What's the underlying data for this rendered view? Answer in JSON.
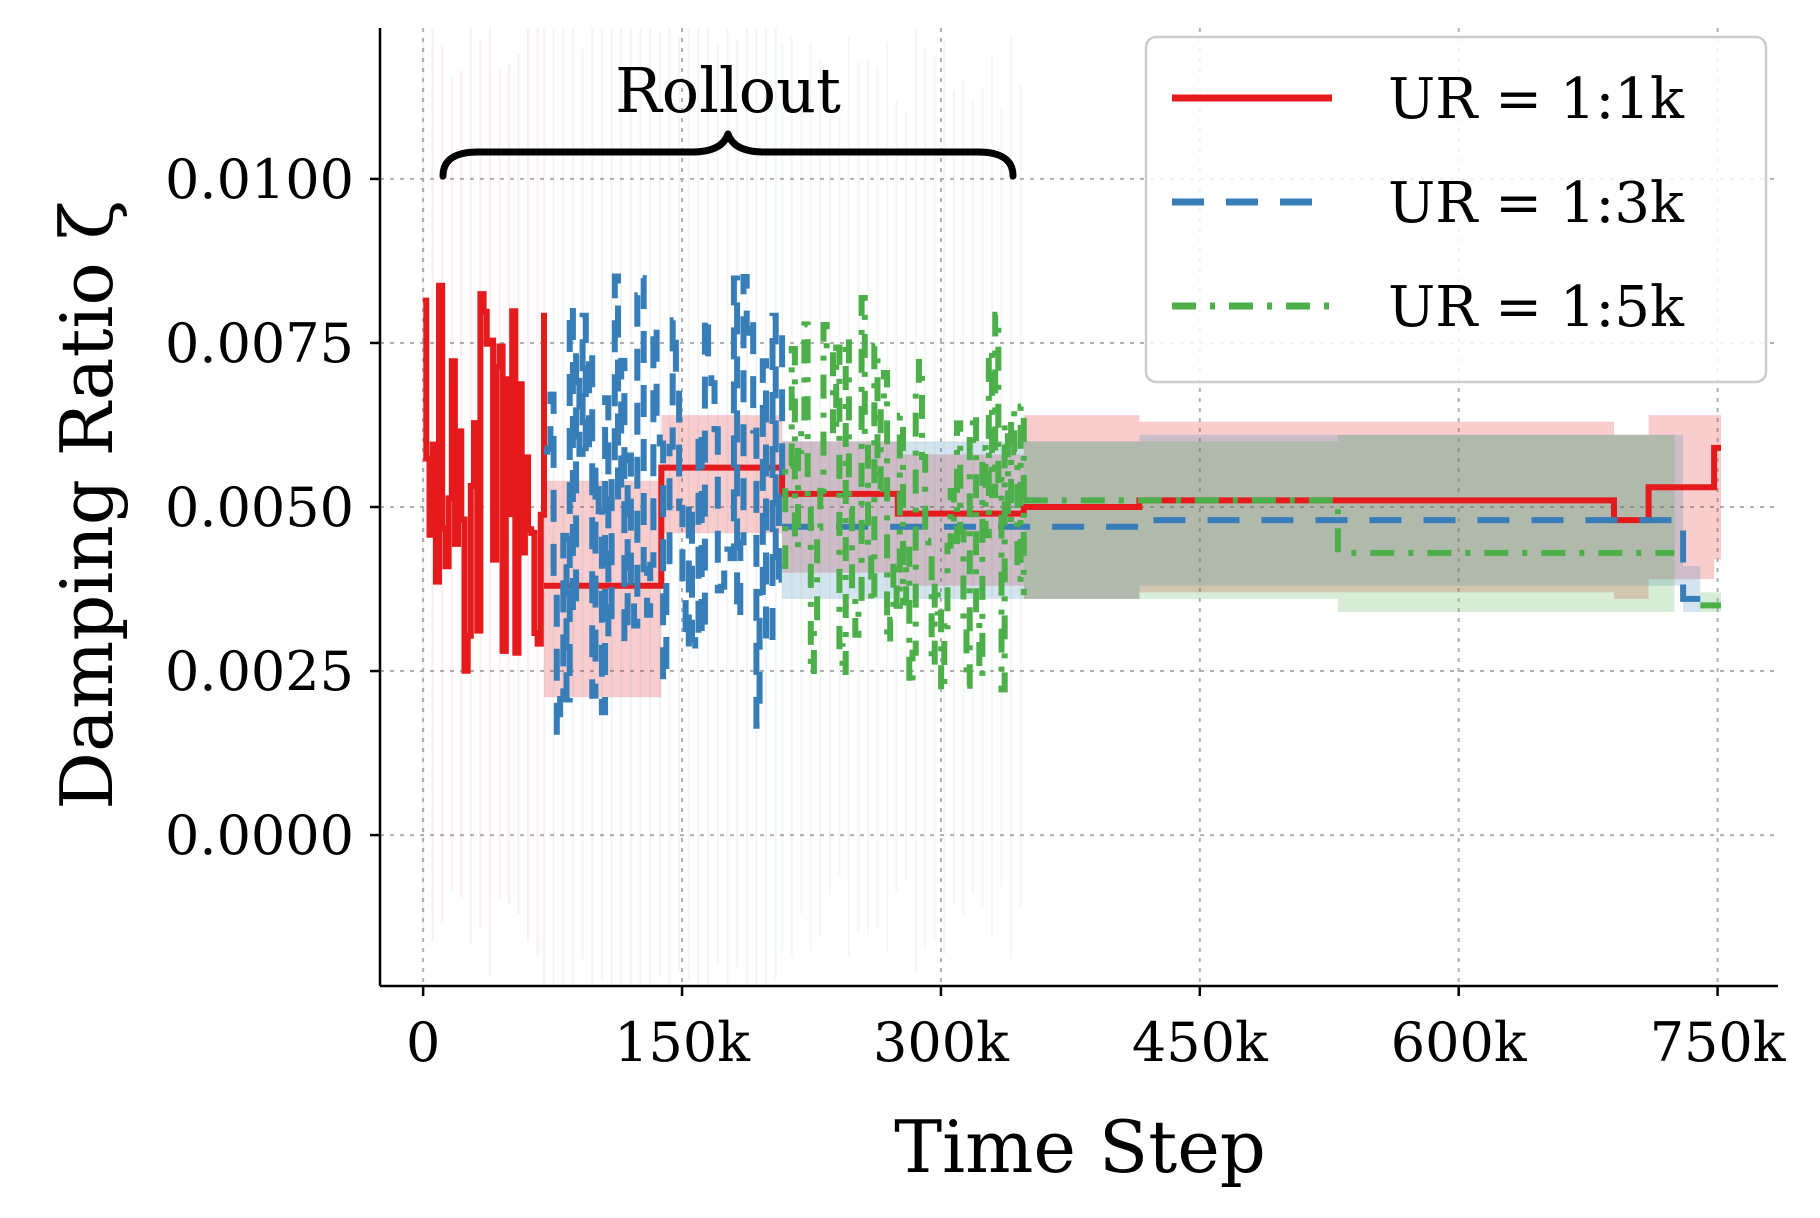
{
  "chart_data": {
    "type": "line",
    "xlabel": "Time Step",
    "ylabel": "Damping Ratio ζ",
    "xlim": [
      -25000,
      785000
    ],
    "ylim": [
      -0.0023,
      0.0123
    ],
    "x_ticks": [
      0,
      150000,
      300000,
      450000,
      600000,
      750000
    ],
    "x_tick_labels": [
      "0",
      "150k",
      "300k",
      "450k",
      "600k",
      "750k"
    ],
    "y_ticks": [
      0.0,
      0.0025,
      0.005,
      0.0075,
      0.01
    ],
    "y_tick_labels": [
      "0.0000",
      "0.0025",
      "0.0050",
      "0.0075",
      "0.0100"
    ],
    "grid": true,
    "legend_position": "top-right",
    "annotation": {
      "text": "Rollout",
      "x_start": 0,
      "x_end": 338000
    },
    "series": [
      {
        "name": "UR = 1:1k",
        "color": "#e41a1c",
        "line_style": "solid",
        "rollout_range": [
          0,
          70000
        ],
        "rollout_min": 0.0022,
        "rollout_max": 0.0085,
        "steps": [
          {
            "x0": 70000,
            "x1": 138000,
            "y": 0.0038,
            "lo": 0.0021,
            "hi": 0.0054
          },
          {
            "x0": 138000,
            "x1": 208000,
            "y": 0.0056,
            "lo": 0.0046,
            "hi": 0.0064
          },
          {
            "x0": 208000,
            "x1": 275000,
            "y": 0.0052,
            "lo": 0.004,
            "hi": 0.006
          },
          {
            "x0": 275000,
            "x1": 348000,
            "y": 0.0049,
            "lo": 0.0038,
            "hi": 0.0058
          },
          {
            "x0": 348000,
            "x1": 415000,
            "y": 0.005,
            "lo": 0.0036,
            "hi": 0.0064
          },
          {
            "x0": 415000,
            "x1": 690000,
            "y": 0.0051,
            "lo": 0.0037,
            "hi": 0.0063
          },
          {
            "x0": 690000,
            "x1": 710000,
            "y": 0.0048,
            "lo": 0.0036,
            "hi": 0.0061
          },
          {
            "x0": 710000,
            "x1": 748000,
            "y": 0.0053,
            "lo": 0.0039,
            "hi": 0.0064
          },
          {
            "x0": 748000,
            "x1": 752000,
            "y": 0.0059,
            "lo": 0.0042,
            "hi": 0.0064
          }
        ]
      },
      {
        "name": "UR = 1:3k",
        "color": "#377eb8",
        "line_style": "dashed",
        "rollout_range": [
          70000,
          208000
        ],
        "rollout_min": 0.0015,
        "rollout_max": 0.0086,
        "steps": [
          {
            "x0": 208000,
            "x1": 415000,
            "y": 0.0047,
            "lo": 0.0036,
            "hi": 0.006
          },
          {
            "x0": 415000,
            "x1": 730000,
            "y": 0.0048,
            "lo": 0.0038,
            "hi": 0.0061
          },
          {
            "x0": 730000,
            "x1": 740000,
            "y": 0.0036,
            "lo": 0.0034,
            "hi": 0.0041
          }
        ]
      },
      {
        "name": "UR = 1:5k",
        "color": "#4daf4a",
        "line_style": "dashdot",
        "rollout_range": [
          208000,
          348000
        ],
        "rollout_min": 0.0021,
        "rollout_max": 0.0082,
        "steps": [
          {
            "x0": 348000,
            "x1": 530000,
            "y": 0.0051,
            "lo": 0.0036,
            "hi": 0.006
          },
          {
            "x0": 530000,
            "x1": 725000,
            "y": 0.0043,
            "lo": 0.0034,
            "hi": 0.0061
          },
          {
            "x0": 740000,
            "x1": 752000,
            "y": 0.0035,
            "lo": 0.0034,
            "hi": 0.0037
          }
        ]
      }
    ]
  }
}
